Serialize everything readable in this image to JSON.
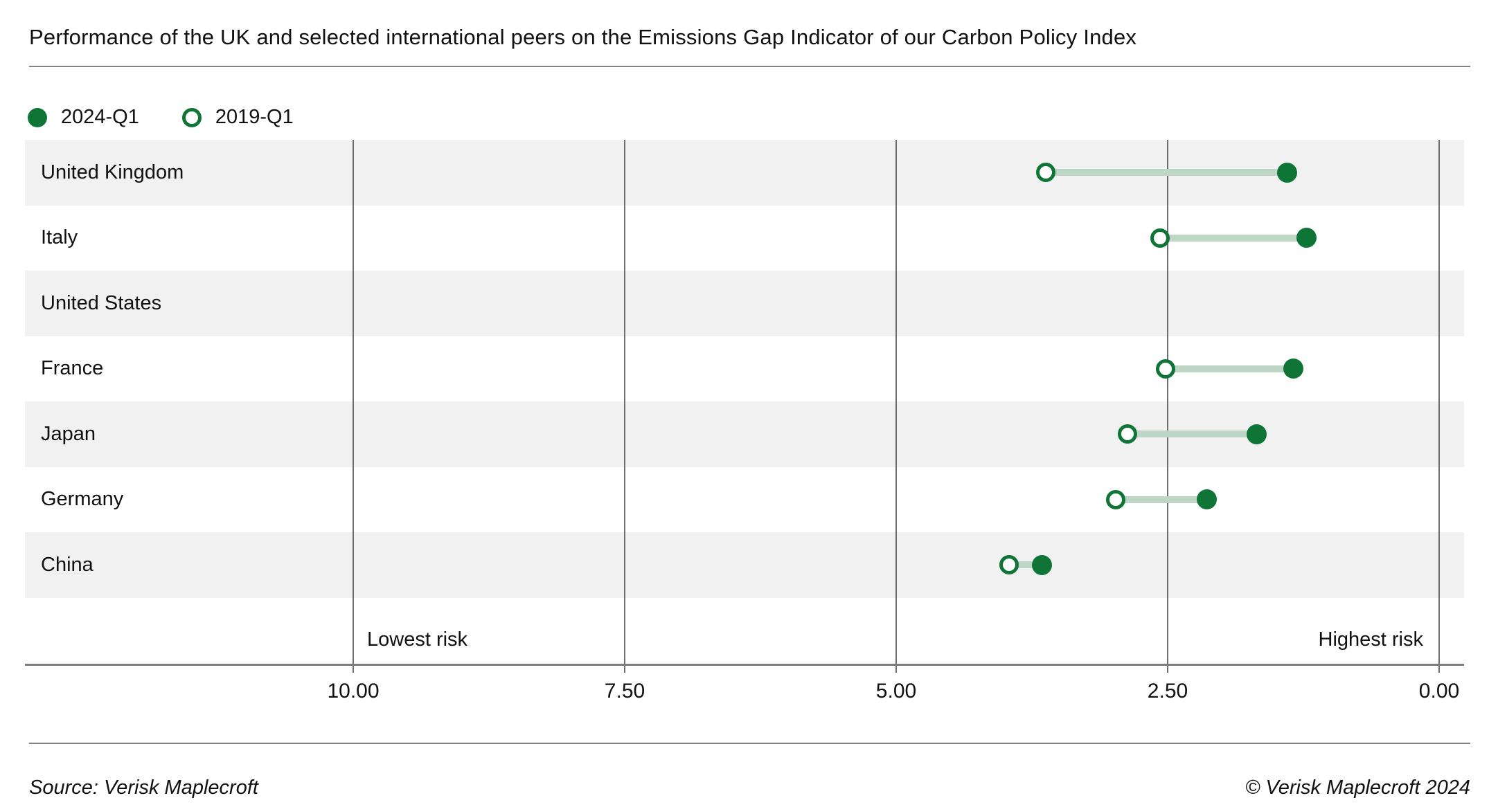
{
  "header": {
    "title": "Performance of the UK and selected international peers on the Emissions Gap Indicator of our Carbon Policy Index"
  },
  "legend": [
    {
      "label": "2024-Q1",
      "marker": "filled"
    },
    {
      "label": "2019-Q1",
      "marker": "open"
    }
  ],
  "chart_data": {
    "type": "dumbbell",
    "orientation": "horizontal",
    "title": "Performance of the UK and selected international peers on the Emissions Gap Indicator of our Carbon Policy Index",
    "categories": [
      "United Kingdom",
      "Italy",
      "United States",
      "France",
      "Japan",
      "Germany",
      "China"
    ],
    "series": [
      {
        "name": "2024-Q1",
        "marker": "filled",
        "values": [
          1.4,
          1.22,
          null,
          1.34,
          1.68,
          2.14,
          3.66
        ]
      },
      {
        "name": "2019-Q1",
        "marker": "open",
        "values": [
          3.62,
          2.57,
          null,
          2.52,
          2.87,
          2.98,
          3.96
        ]
      }
    ],
    "x_axis": {
      "tick_labels": [
        "10.00",
        "7.50",
        "5.00",
        "2.50",
        "0.00"
      ],
      "tick_values": [
        10,
        7.5,
        5,
        2.5,
        0
      ],
      "reversed": true,
      "left_note": "Lowest risk",
      "right_note": "Highest risk"
    },
    "legend_position": "top-left",
    "grid": true,
    "colors": {
      "accent_green": "#0e7536",
      "connector_green": "#bdd6c6",
      "row_stripe": "#f1f1f1",
      "gridline": "#6e6e6e",
      "text": "#111111"
    }
  },
  "footer": {
    "source": "Source: Verisk Maplecroft",
    "copyright": "© Verisk Maplecroft 2024"
  }
}
